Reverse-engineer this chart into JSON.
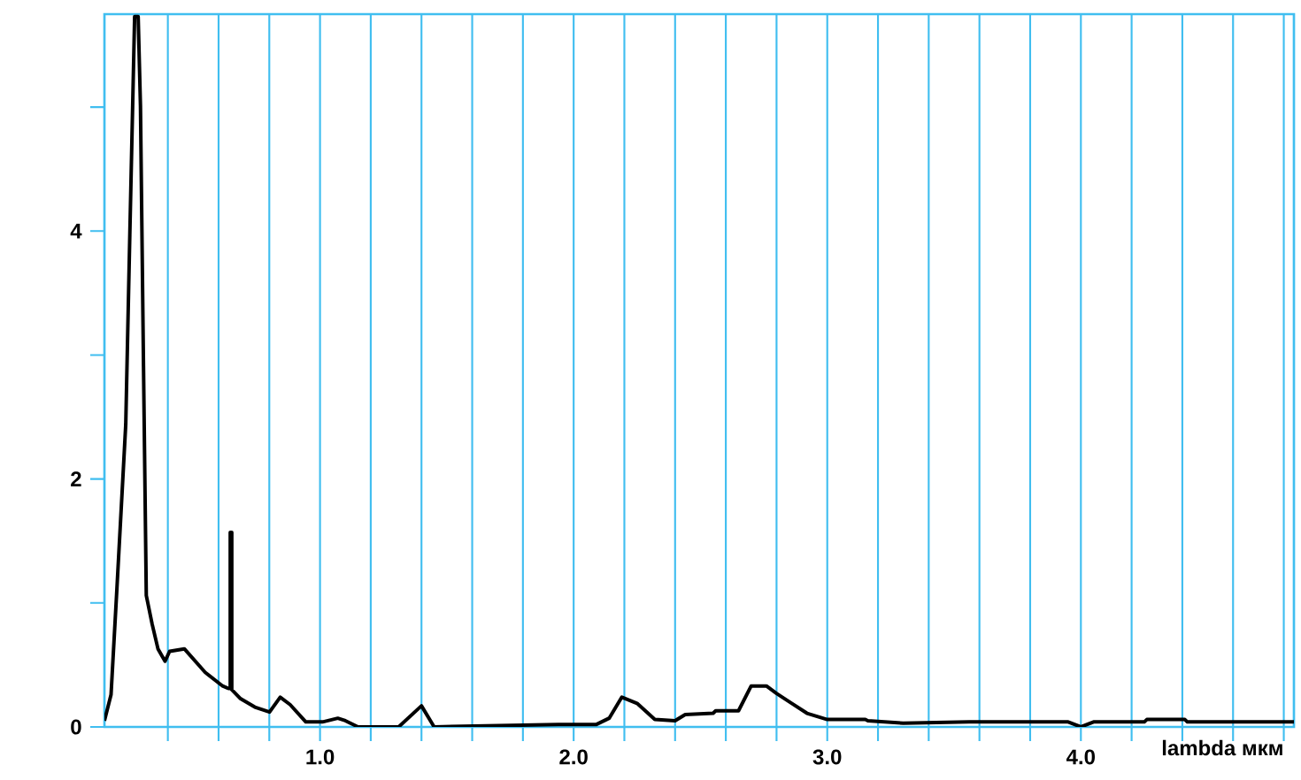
{
  "chart_data": {
    "type": "line",
    "xlabel": "lambda мкм",
    "xlim": [
      0.15,
      4.84
    ],
    "ylim": [
      0,
      5.75
    ],
    "xticks": [
      {
        "value": 0.4,
        "label": null
      },
      {
        "value": 0.6,
        "label": null
      },
      {
        "value": 0.8,
        "label": null
      },
      {
        "value": 1.0,
        "label": "1.0"
      },
      {
        "value": 1.2,
        "label": null
      },
      {
        "value": 1.4,
        "label": null
      },
      {
        "value": 1.6,
        "label": null
      },
      {
        "value": 1.8,
        "label": null
      },
      {
        "value": 2.0,
        "label": "2.0"
      },
      {
        "value": 2.2,
        "label": null
      },
      {
        "value": 2.4,
        "label": null
      },
      {
        "value": 2.6,
        "label": null
      },
      {
        "value": 2.8,
        "label": null
      },
      {
        "value": 3.0,
        "label": "3.0"
      },
      {
        "value": 3.2,
        "label": null
      },
      {
        "value": 3.4,
        "label": null
      },
      {
        "value": 3.6,
        "label": null
      },
      {
        "value": 3.8,
        "label": null
      },
      {
        "value": 4.0,
        "label": "4.0"
      },
      {
        "value": 4.2,
        "label": null
      },
      {
        "value": 4.4,
        "label": null
      },
      {
        "value": 4.6,
        "label": null
      },
      {
        "value": 4.8,
        "label": null
      }
    ],
    "yticks": [
      0,
      {
        "value": 1,
        "label": null
      },
      2,
      {
        "value": 3,
        "label": null
      },
      4,
      {
        "value": 5,
        "label": null
      }
    ],
    "grid": "x",
    "marker": "none",
    "series": [
      {
        "color": "#000000",
        "x": [
          0.15,
          0.176,
          0.199,
          0.234,
          0.25,
          0.269,
          0.283,
          0.292,
          0.304,
          0.315,
          0.338,
          0.361,
          0.389,
          0.407,
          0.465,
          0.547,
          0.616,
          0.639,
          0.646,
          0.646,
          0.652,
          0.652,
          0.685,
          0.743,
          0.801,
          0.843,
          0.882,
          0.944,
          1.01,
          1.07,
          1.1,
          1.15,
          1.31,
          1.4,
          1.45,
          1.94,
          2.09,
          2.14,
          2.19,
          2.25,
          2.32,
          2.4,
          2.44,
          2.55,
          2.56,
          2.65,
          2.7,
          2.76,
          2.8,
          2.86,
          2.92,
          3.0,
          3.15,
          3.16,
          3.3,
          3.56,
          3.95,
          4.0,
          4.05,
          4.25,
          4.26,
          4.41,
          4.42,
          4.84
        ],
        "values": [
          0.05,
          0.26,
          1.11,
          2.44,
          3.97,
          5.73,
          5.73,
          5.01,
          2.91,
          1.06,
          0.83,
          0.63,
          0.53,
          0.61,
          0.63,
          0.44,
          0.33,
          0.31,
          0.31,
          1.57,
          1.57,
          0.3,
          0.23,
          0.16,
          0.12,
          0.24,
          0.18,
          0.04,
          0.04,
          0.07,
          0.05,
          0,
          0,
          0.17,
          0,
          0.02,
          0.02,
          0.07,
          0.24,
          0.19,
          0.06,
          0.05,
          0.1,
          0.11,
          0.13,
          0.13,
          0.33,
          0.33,
          0.27,
          0.19,
          0.11,
          0.06,
          0.06,
          0.05,
          0.03,
          0.04,
          0.04,
          0,
          0.04,
          0.04,
          0.06,
          0.06,
          0.04,
          0.04
        ]
      }
    ]
  }
}
